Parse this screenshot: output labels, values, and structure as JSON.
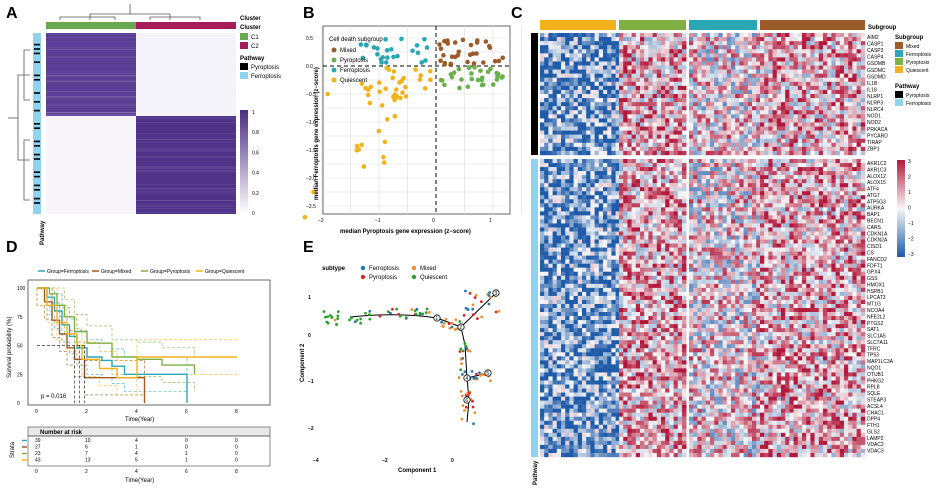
{
  "panels": {
    "A": {
      "letter": "A",
      "legend_cluster_title": "Cluster",
      "legend_cluster_title2": "Cluster",
      "clusters": [
        {
          "label": "C1",
          "color": "#6aa84f"
        },
        {
          "label": "C2",
          "color": "#a61c5b"
        }
      ],
      "legend_pathway_title": "Pathway",
      "pathways": [
        {
          "label": "Pyroptosis",
          "color": "#000000"
        },
        {
          "label": "Ferroptosis",
          "color": "#8fd3ef"
        }
      ],
      "colorbar_ticks": [
        "1",
        "0.8",
        "0.6",
        "0.4",
        "0.2",
        "0"
      ],
      "side_label": "Pathway",
      "heat_color": "#4b2e83"
    },
    "B": {
      "letter": "B",
      "legend_title": "Cell death subgroup",
      "legend_items": [
        {
          "label": "Mixed",
          "color": "#9c5b2a"
        },
        {
          "label": "Pyroptosis",
          "color": "#6ab04c"
        },
        {
          "label": "Ferroptosis",
          "color": "#2aa7b5"
        },
        {
          "label": "Quiescent",
          "color": "#f2b21b"
        }
      ],
      "xlabel": "median Pyroptosis gene expression (z−score)",
      "ylabel": "median Ferroptosis gene expression (z−score)",
      "xticks": [
        "−2",
        "−1",
        "0",
        "1"
      ],
      "yticks": [
        "0.5",
        "0.0",
        "−0.5",
        "−1.0",
        "−1.5",
        "−2.0",
        "−2.5"
      ]
    },
    "C": {
      "letter": "C",
      "legend_subgroup_title": "Subgroup",
      "subgroups": [
        {
          "label": "Mixed",
          "color": "#9c5b2a"
        },
        {
          "label": "Ferroptosis",
          "color": "#2aa7b5"
        },
        {
          "label": "Pyroptosis",
          "color": "#7fb043"
        },
        {
          "label": "Quiescent",
          "color": "#f2b21b"
        }
      ],
      "legend_pathway_title": "Pathway",
      "pathways": [
        {
          "label": "Pyroptosis",
          "color": "#000000"
        },
        {
          "label": "Ferroptosis",
          "color": "#8fd3ef"
        }
      ],
      "colorbar_ticks": [
        "3",
        "2",
        "1",
        "0",
        "−1",
        "−2",
        "−3"
      ],
      "side_label": "Pathway",
      "genes_top": [
        "AIM2",
        "CASP1",
        "CASP3",
        "CASP4",
        "GSDMB",
        "GSDMC",
        "GSDMD",
        "IL1B",
        "IL18",
        "NLRP1",
        "NLRP3",
        "NLRC4",
        "NOD1",
        "NOD2",
        "PRKACA",
        "PYCARD",
        "TIRAP",
        "ZBP1"
      ],
      "genes_bottom": [
        "AKR1C2",
        "AKR1C3",
        "ALOX12",
        "ALOX15",
        "ATF4",
        "ATG7",
        "ATP5G3",
        "AURKA",
        "BAP1",
        "BECN1",
        "CARS",
        "CDKN1A",
        "CDKN2A",
        "CISD1",
        "CS",
        "FANCD2",
        "FDFT1",
        "GPX4",
        "GSS",
        "HMOX1",
        "HSPB1",
        "LPCAT3",
        "MT1G",
        "NCOA4",
        "NFE2L2",
        "PTGS2",
        "SAT1",
        "SLC1A5",
        "SLC7A11",
        "TFRC",
        "TP53",
        "MAP1LC3A",
        "NQO1",
        "OTUB1",
        "PHKG2",
        "RPL8",
        "SQLE",
        "STEAP3",
        "ACSL4",
        "CHAC1",
        "DPP4",
        "FTH1",
        "GLS2",
        "LAMP2",
        "VDAC2",
        "VDAC3"
      ]
    },
    "D": {
      "letter": "D",
      "legend": [
        {
          "label": "Group=Ferroptosis",
          "color": "#2aa7b5"
        },
        {
          "label": "Group=Mixed",
          "color": "#9c5b2a"
        },
        {
          "label": "Group=Pyroptosis",
          "color": "#7fb043"
        },
        {
          "label": "Group=Quiescent",
          "color": "#f2b21b"
        }
      ],
      "ylabel": "Survival probability (%)",
      "xlabel": "Time(Year)",
      "yticks": [
        "100",
        "75",
        "50",
        "25",
        "0"
      ],
      "xticks": [
        "0",
        "2",
        "4",
        "6",
        "8"
      ],
      "pvalue": "p = 0.016",
      "risk_title": "Number at risk",
      "risk_rows": [
        [
          "39",
          "10",
          "4",
          "0",
          "0"
        ],
        [
          "27",
          "6",
          "1",
          "0",
          "0"
        ],
        [
          "23",
          "7",
          "4",
          "1",
          "0"
        ],
        [
          "43",
          "13",
          "5",
          "1",
          "0"
        ]
      ],
      "strata_label": "Strata",
      "risk_xticks": [
        "0",
        "2",
        "4",
        "6",
        "8"
      ],
      "risk_xlabel": "Time(Year)"
    },
    "E": {
      "letter": "E",
      "legend_title": "subtype",
      "legend_items": [
        {
          "label": "Ferroptosis",
          "color": "#1f77b4"
        },
        {
          "label": "Mixed",
          "color": "#f28e2b"
        },
        {
          "label": "Pyroptosis",
          "color": "#d62728"
        },
        {
          "label": "Quiescent",
          "color": "#2ca02c"
        }
      ],
      "xlabel": "Component 1",
      "ylabel": "Component 2",
      "xticks": [
        "−4",
        "−2",
        "0"
      ],
      "yticks": [
        "1",
        "0",
        "−1",
        "−2"
      ],
      "nodes": [
        "1",
        "2",
        "3",
        "4",
        "5",
        "6"
      ]
    }
  }
}
